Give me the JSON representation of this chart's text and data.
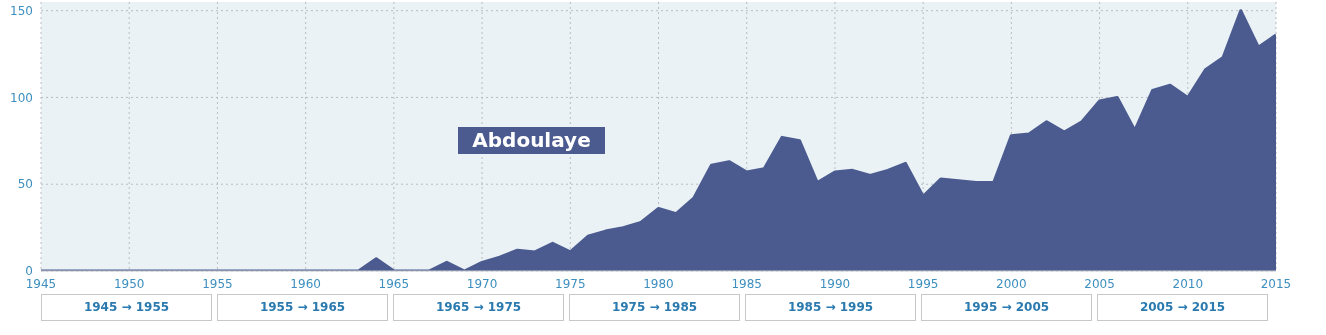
{
  "chart_data": {
    "type": "area",
    "title": "Abdoulaye",
    "x": [
      1945,
      1946,
      1947,
      1948,
      1949,
      1950,
      1951,
      1952,
      1953,
      1954,
      1955,
      1956,
      1957,
      1958,
      1959,
      1960,
      1961,
      1962,
      1963,
      1964,
      1965,
      1966,
      1967,
      1968,
      1969,
      1970,
      1971,
      1972,
      1973,
      1974,
      1975,
      1976,
      1977,
      1978,
      1979,
      1980,
      1981,
      1982,
      1983,
      1984,
      1985,
      1986,
      1987,
      1988,
      1989,
      1990,
      1991,
      1992,
      1993,
      1994,
      1995,
      1996,
      1997,
      1998,
      1999,
      2000,
      2001,
      2002,
      2003,
      2004,
      2005,
      2006,
      2007,
      2008,
      2009,
      2010,
      2011,
      2012,
      2013,
      2014,
      2015
    ],
    "values": [
      0,
      0,
      0,
      0,
      0,
      0,
      0,
      0,
      0,
      0,
      0,
      0,
      0,
      0,
      0,
      0,
      0,
      0,
      0,
      7,
      0,
      0,
      0,
      5,
      0,
      5,
      8,
      12,
      11,
      16,
      11,
      20,
      23,
      25,
      28,
      36,
      33,
      42,
      61,
      63,
      57,
      59,
      77,
      75,
      51,
      57,
      58,
      55,
      58,
      62,
      43,
      53,
      52,
      51,
      51,
      78,
      79,
      86,
      80,
      86,
      98,
      100,
      81,
      104,
      107,
      100,
      116,
      123,
      150,
      129,
      136
    ],
    "color": "#4b5b8f",
    "xlim": [
      1945,
      2015
    ],
    "xticks": [
      1945,
      1950,
      1955,
      1960,
      1965,
      1970,
      1975,
      1980,
      1985,
      1990,
      1995,
      2000,
      2005,
      2010,
      2015
    ],
    "ylim": [
      0,
      155
    ],
    "yticks": [
      0,
      50,
      100,
      150
    ],
    "grid": true,
    "annotations": [
      "1945 → 1955",
      "1955 → 1965",
      "1965 → 1975",
      "1975 → 1985",
      "1985 → 1995",
      "1995 → 2005",
      "2005 → 2015"
    ]
  }
}
